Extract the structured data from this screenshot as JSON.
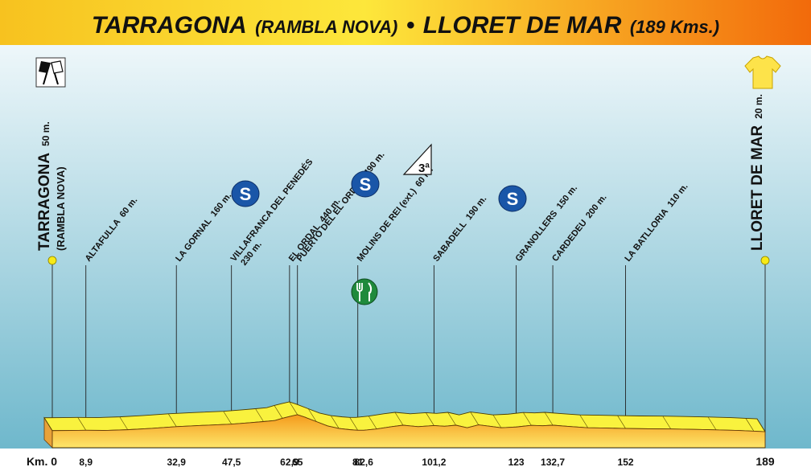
{
  "title": {
    "start": "TARRAGONA",
    "start_detail": "(RAMBLA NOVA)",
    "separator": "•",
    "finish": "LLORET DE MAR",
    "finish_detail": "(189 Kms.)"
  },
  "colors": {
    "banner_start": "#f7c21f",
    "banner_mid": "#fde73b",
    "banner_end": "#f26a0b",
    "sky_top": "#eef7fa",
    "sky_bottom": "#6fb8cc",
    "profile_top": "#f9f23e",
    "profile_body_top": "#f59a1c",
    "profile_body_bottom": "#fde66a",
    "sprint_badge": "#1a56a8",
    "feed_badge": "#1f8a3c",
    "endpoint_dot": "#f7ea17"
  },
  "icons": {
    "start": "checkered-flags-icon",
    "finish": "leader-jersey-icon",
    "sprint": "intermediate-sprint-icon",
    "climb": "mountain-category-icon",
    "feed": "feed-zone-icon"
  },
  "chart_data": {
    "type": "area",
    "title": "TARRAGONA (RAMBLA NOVA) • LLORET DE MAR (189 Kms.)",
    "xlabel": "Km.",
    "ylabel": "",
    "xlim": [
      0,
      189
    ],
    "x_ticks": [
      {
        "label": "Km. 0",
        "km": 0
      },
      {
        "label": "8,9",
        "km": 8.9
      },
      {
        "label": "32,9",
        "km": 32.9
      },
      {
        "label": "47,5",
        "km": 47.5
      },
      {
        "label": "62,9",
        "km": 62.9
      },
      {
        "label": "65",
        "km": 65
      },
      {
        "label": "81",
        "km": 81
      },
      {
        "label": "82,6",
        "km": 82.6
      },
      {
        "label": "101,2",
        "km": 101.2
      },
      {
        "label": "123",
        "km": 123
      },
      {
        "label": "132,7",
        "km": 132.7
      },
      {
        "label": "152",
        "km": 152
      },
      {
        "label": "189",
        "km": 189
      }
    ],
    "places": [
      {
        "km": 0,
        "name": "TARRAGONA",
        "sub": "(RAMBLA NOVA)",
        "altitude": "50 m.",
        "endpoint": true
      },
      {
        "km": 8.9,
        "name": "ALTAFULLA",
        "altitude": "60 m."
      },
      {
        "km": 32.9,
        "name": "LA GORNAL",
        "altitude": "160 m.",
        "sprint": true
      },
      {
        "km": 47.5,
        "name": "VILLAFRANCA DEL PENEDÉS",
        "altitude": "230 m.",
        "altitude_second_line": true
      },
      {
        "km": 62.9,
        "name": "EL ORDAL",
        "altitude": "440 m.",
        "sprint": true
      },
      {
        "km": 65,
        "name": "PUERTO DEL EL ORDAL",
        "altitude": "490 m.",
        "climb": "3ª"
      },
      {
        "km": 81,
        "name": "MOLINS DE REI (ext.)",
        "altitude": "60 m.",
        "feed": true
      },
      {
        "km": 101.2,
        "name": "SABADELL",
        "altitude": "190 m.",
        "sprint": true
      },
      {
        "km": 123,
        "name": "GRANOLLERS",
        "altitude": "150 m."
      },
      {
        "km": 132.7,
        "name": "CARDEDEU",
        "altitude": "200 m."
      },
      {
        "km": 152,
        "name": "LA BATLLORIA",
        "altitude": "110 m."
      },
      {
        "km": 189,
        "name": "LLORET DE MAR",
        "altitude": "20 m.",
        "endpoint": true
      }
    ],
    "profile": [
      {
        "km": 0,
        "alt": 50
      },
      {
        "km": 5,
        "alt": 55
      },
      {
        "km": 8.9,
        "alt": 60
      },
      {
        "km": 14,
        "alt": 55
      },
      {
        "km": 20,
        "alt": 75
      },
      {
        "km": 26,
        "alt": 110
      },
      {
        "km": 32.9,
        "alt": 160
      },
      {
        "km": 40,
        "alt": 195
      },
      {
        "km": 47.5,
        "alt": 230
      },
      {
        "km": 52,
        "alt": 265
      },
      {
        "km": 56,
        "alt": 300
      },
      {
        "km": 59,
        "alt": 330
      },
      {
        "km": 61,
        "alt": 390
      },
      {
        "km": 62.9,
        "alt": 440
      },
      {
        "km": 65,
        "alt": 490
      },
      {
        "km": 67,
        "alt": 420
      },
      {
        "km": 70,
        "alt": 300
      },
      {
        "km": 73,
        "alt": 180
      },
      {
        "km": 76,
        "alt": 110
      },
      {
        "km": 79,
        "alt": 75
      },
      {
        "km": 81,
        "alt": 60
      },
      {
        "km": 82.6,
        "alt": 60
      },
      {
        "km": 86,
        "alt": 95
      },
      {
        "km": 90,
        "alt": 160
      },
      {
        "km": 93,
        "alt": 200
      },
      {
        "km": 97,
        "alt": 160
      },
      {
        "km": 101.2,
        "alt": 190
      },
      {
        "km": 104,
        "alt": 170
      },
      {
        "km": 107,
        "alt": 200
      },
      {
        "km": 110,
        "alt": 130
      },
      {
        "km": 113,
        "alt": 210
      },
      {
        "km": 116,
        "alt": 170
      },
      {
        "km": 119,
        "alt": 130
      },
      {
        "km": 123,
        "alt": 150
      },
      {
        "km": 127,
        "alt": 195
      },
      {
        "km": 130,
        "alt": 185
      },
      {
        "km": 132.7,
        "alt": 200
      },
      {
        "km": 137,
        "alt": 165
      },
      {
        "km": 142,
        "alt": 130
      },
      {
        "km": 147,
        "alt": 120
      },
      {
        "km": 152,
        "alt": 110
      },
      {
        "km": 158,
        "alt": 100
      },
      {
        "km": 164,
        "alt": 95
      },
      {
        "km": 170,
        "alt": 85
      },
      {
        "km": 176,
        "alt": 70
      },
      {
        "km": 182,
        "alt": 55
      },
      {
        "km": 186,
        "alt": 35
      },
      {
        "km": 189,
        "alt": 20
      }
    ]
  }
}
